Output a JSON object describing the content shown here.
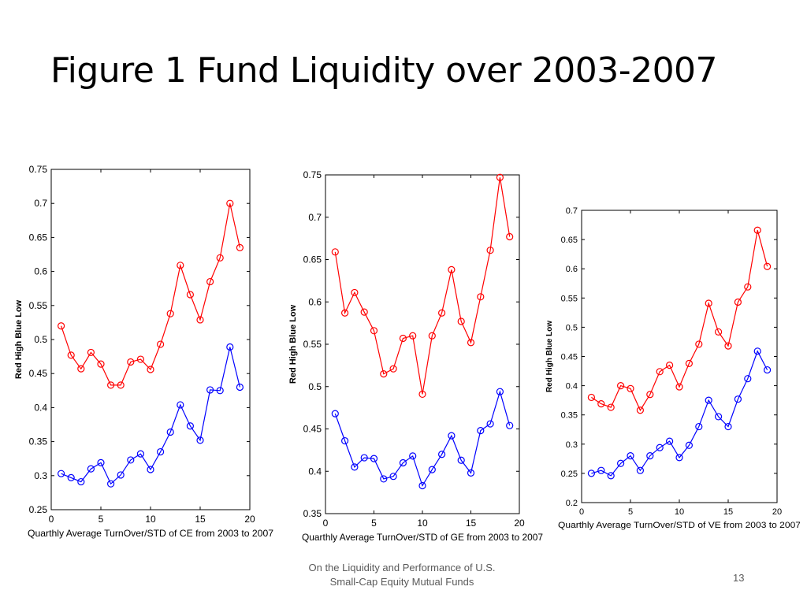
{
  "slide": {
    "title": "Figure 1 Fund Liquidity over 2003-2007",
    "footer_line1": "On the Liquidity and Performance of U.S.",
    "footer_line2": "Small-Cap Equity Mutual Funds",
    "page_number": "13"
  },
  "colors": {
    "high": "#ff0000",
    "low": "#0000ff",
    "axis": "#000000"
  },
  "chart_data": [
    {
      "type": "line",
      "xlabel": "Quarthly Average  TurnOver/STD   of CE from 2003 to 2007",
      "ylabel": "Red High  Blue Low",
      "xlim": [
        0,
        20
      ],
      "ylim": [
        0.25,
        0.75
      ],
      "xticks": [
        0,
        5,
        10,
        15,
        20
      ],
      "yticks": [
        0.25,
        0.3,
        0.35,
        0.4,
        0.45,
        0.5,
        0.55,
        0.6,
        0.65,
        0.7,
        0.75
      ],
      "x": [
        1,
        2,
        3,
        4,
        5,
        6,
        7,
        8,
        9,
        10,
        11,
        12,
        13,
        14,
        15,
        16,
        17,
        18,
        19
      ],
      "series": [
        {
          "color": "#ff0000",
          "values": [
            0.52,
            0.477,
            0.457,
            0.481,
            0.464,
            0.433,
            0.433,
            0.467,
            0.471,
            0.456,
            0.493,
            0.538,
            0.609,
            0.566,
            0.529,
            0.585,
            0.62,
            0.7,
            0.635
          ]
        },
        {
          "color": "#0000ff",
          "values": [
            0.303,
            0.297,
            0.291,
            0.31,
            0.319,
            0.288,
            0.301,
            0.323,
            0.332,
            0.309,
            0.335,
            0.364,
            0.404,
            0.373,
            0.352,
            0.426,
            0.425,
            0.489,
            0.43
          ]
        }
      ]
    },
    {
      "type": "line",
      "xlabel": "Quarthly Average  TurnOver/STD   of GE from 2003 to 2007",
      "ylabel": "Red High  Blue Low",
      "xlim": [
        0,
        20
      ],
      "ylim": [
        0.35,
        0.75
      ],
      "xticks": [
        0,
        5,
        10,
        15,
        20
      ],
      "yticks": [
        0.35,
        0.4,
        0.45,
        0.5,
        0.55,
        0.6,
        0.65,
        0.7,
        0.75
      ],
      "x": [
        1,
        2,
        3,
        4,
        5,
        6,
        7,
        8,
        9,
        10,
        11,
        12,
        13,
        14,
        15,
        16,
        17,
        18,
        19
      ],
      "series": [
        {
          "color": "#ff0000",
          "values": [
            0.659,
            0.587,
            0.611,
            0.588,
            0.566,
            0.515,
            0.521,
            0.557,
            0.56,
            0.491,
            0.56,
            0.587,
            0.638,
            0.577,
            0.552,
            0.606,
            0.661,
            0.747,
            0.677
          ]
        },
        {
          "color": "#0000ff",
          "values": [
            0.468,
            0.436,
            0.405,
            0.416,
            0.415,
            0.391,
            0.394,
            0.41,
            0.418,
            0.383,
            0.402,
            0.42,
            0.442,
            0.413,
            0.398,
            0.448,
            0.456,
            0.494,
            0.454
          ]
        }
      ]
    },
    {
      "type": "line",
      "xlabel": "Quarthly Average  TurnOver/STD   of VE from 2003 to 2007",
      "ylabel": "Red High  Blue Low",
      "xlim": [
        0,
        20
      ],
      "ylim": [
        0.2,
        0.7
      ],
      "xticks": [
        0,
        5,
        10,
        15,
        20
      ],
      "yticks": [
        0.2,
        0.25,
        0.3,
        0.35,
        0.4,
        0.45,
        0.5,
        0.55,
        0.6,
        0.65,
        0.7
      ],
      "x": [
        1,
        2,
        3,
        4,
        5,
        6,
        7,
        8,
        9,
        10,
        11,
        12,
        13,
        14,
        15,
        16,
        17,
        18,
        19
      ],
      "series": [
        {
          "color": "#ff0000",
          "values": [
            0.38,
            0.369,
            0.363,
            0.4,
            0.395,
            0.358,
            0.385,
            0.424,
            0.435,
            0.398,
            0.438,
            0.471,
            0.541,
            0.492,
            0.468,
            0.543,
            0.569,
            0.666,
            0.604
          ]
        },
        {
          "color": "#0000ff",
          "values": [
            0.25,
            0.255,
            0.246,
            0.267,
            0.28,
            0.255,
            0.28,
            0.294,
            0.305,
            0.277,
            0.298,
            0.33,
            0.375,
            0.347,
            0.33,
            0.377,
            0.412,
            0.459,
            0.427
          ]
        }
      ]
    }
  ]
}
